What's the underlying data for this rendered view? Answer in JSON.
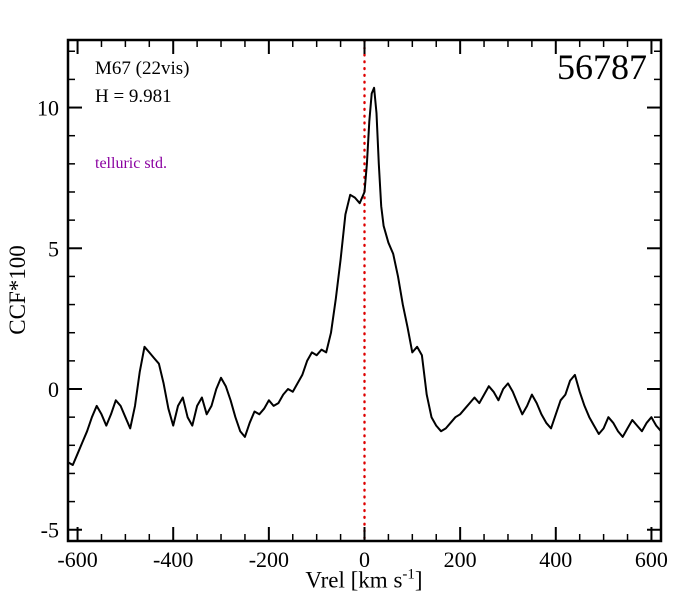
{
  "annotations": {
    "cluster": "M67 (22vis)",
    "hmag": "H = 9.981",
    "telluric": "telluric std.",
    "telluric_color": "#8a00a0",
    "star_id": "56787"
  },
  "chart_data": {
    "type": "line",
    "title": "",
    "xlabel": "Vrel [km s^-1]",
    "xlabel_parts": {
      "prefix": "Vrel [km s",
      "sup": "-1",
      "suffix": "]"
    },
    "ylabel": "CCF*100",
    "xlim": [
      -620,
      620
    ],
    "ylim": [
      -5.4,
      12.4
    ],
    "x_ticks": [
      -600,
      -400,
      -200,
      0,
      200,
      400,
      600
    ],
    "y_ticks": [
      -5,
      0,
      5,
      10
    ],
    "x_minor_step": 50,
    "y_minor_step": 1,
    "grid": false,
    "legend": false,
    "reference_line_x": 0,
    "reference_line_color": "#dd0000",
    "line_color": "#000000",
    "series": [
      {
        "name": "CCF",
        "x": [
          -620,
          -610,
          -600,
          -590,
          -580,
          -570,
          -560,
          -550,
          -540,
          -530,
          -520,
          -510,
          -500,
          -490,
          -480,
          -470,
          -460,
          -450,
          -440,
          -430,
          -420,
          -410,
          -400,
          -390,
          -380,
          -370,
          -360,
          -350,
          -340,
          -330,
          -320,
          -310,
          -300,
          -290,
          -280,
          -270,
          -260,
          -250,
          -240,
          -230,
          -220,
          -210,
          -200,
          -190,
          -180,
          -170,
          -160,
          -150,
          -140,
          -130,
          -120,
          -110,
          -100,
          -90,
          -80,
          -70,
          -60,
          -50,
          -40,
          -30,
          -20,
          -10,
          0,
          5,
          10,
          15,
          20,
          25,
          30,
          35,
          40,
          50,
          60,
          70,
          80,
          90,
          100,
          110,
          120,
          130,
          140,
          150,
          160,
          170,
          180,
          190,
          200,
          210,
          220,
          230,
          240,
          250,
          260,
          270,
          280,
          290,
          300,
          310,
          320,
          330,
          340,
          350,
          360,
          370,
          380,
          390,
          400,
          410,
          420,
          430,
          440,
          450,
          460,
          470,
          480,
          490,
          500,
          510,
          520,
          530,
          540,
          550,
          560,
          570,
          580,
          590,
          600,
          610,
          620
        ],
        "y": [
          -2.6,
          -2.7,
          -2.3,
          -1.9,
          -1.5,
          -1.0,
          -0.6,
          -0.9,
          -1.3,
          -0.9,
          -0.4,
          -0.6,
          -1.0,
          -1.4,
          -0.6,
          0.6,
          1.5,
          1.3,
          1.1,
          0.9,
          0.2,
          -0.7,
          -1.3,
          -0.6,
          -0.3,
          -1.0,
          -1.3,
          -0.6,
          -0.3,
          -0.9,
          -0.6,
          0.0,
          0.4,
          0.1,
          -0.4,
          -1.0,
          -1.5,
          -1.7,
          -1.2,
          -0.8,
          -0.9,
          -0.7,
          -0.4,
          -0.6,
          -0.5,
          -0.2,
          0.0,
          -0.1,
          0.2,
          0.5,
          1.0,
          1.3,
          1.2,
          1.4,
          1.3,
          2.0,
          3.2,
          4.6,
          6.2,
          6.9,
          6.8,
          6.6,
          7.0,
          8.0,
          9.5,
          10.5,
          10.7,
          9.8,
          8.0,
          6.5,
          5.8,
          5.2,
          4.8,
          4.0,
          3.0,
          2.2,
          1.3,
          1.5,
          1.2,
          -0.2,
          -1.0,
          -1.3,
          -1.5,
          -1.4,
          -1.2,
          -1.0,
          -0.9,
          -0.7,
          -0.5,
          -0.3,
          -0.5,
          -0.2,
          0.1,
          -0.1,
          -0.4,
          0.0,
          0.2,
          -0.1,
          -0.5,
          -0.9,
          -0.6,
          -0.2,
          -0.5,
          -0.9,
          -1.2,
          -1.4,
          -0.9,
          -0.4,
          -0.2,
          0.3,
          0.5,
          -0.1,
          -0.6,
          -1.0,
          -1.3,
          -1.6,
          -1.4,
          -1.0,
          -1.2,
          -1.5,
          -1.7,
          -1.4,
          -1.1,
          -1.3,
          -1.5,
          -1.2,
          -1.0,
          -1.3,
          -1.5
        ]
      }
    ]
  }
}
